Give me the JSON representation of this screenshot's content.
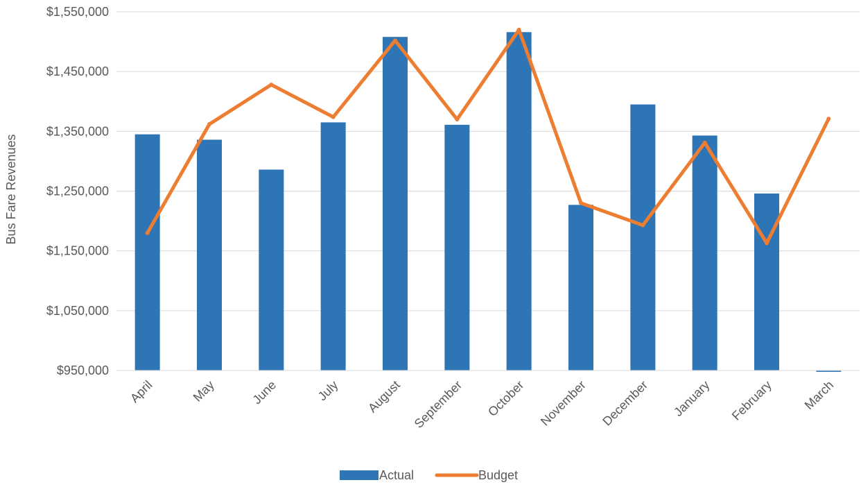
{
  "chart_data": {
    "type": "bar",
    "title": "",
    "xlabel": "",
    "ylabel": "Bus Fare Revenues",
    "ylim": [
      950000,
      1550000
    ],
    "yticks": [
      950000,
      1050000,
      1150000,
      1250000,
      1350000,
      1450000,
      1550000
    ],
    "ytick_labels": [
      "$950,000",
      "$1,050,000",
      "$1,150,000",
      "$1,250,000",
      "$1,350,000",
      "$1,450,000",
      "$1,550,000"
    ],
    "grid": true,
    "legend_position": "bottom",
    "categories": [
      "April",
      "May",
      "June",
      "July",
      "August",
      "September",
      "October",
      "November",
      "December",
      "January",
      "February",
      "March"
    ],
    "series": [
      {
        "name": "Actual",
        "type": "bar",
        "color": "#2e75b6",
        "values": [
          1345000,
          1336000,
          1286000,
          1365000,
          1508000,
          1361000,
          1516000,
          1227000,
          1395000,
          1343000,
          1246000,
          948000
        ]
      },
      {
        "name": "Budget",
        "type": "line",
        "color": "#ed7d31",
        "values": [
          1180000,
          1362000,
          1428000,
          1374000,
          1502000,
          1370000,
          1520000,
          1230000,
          1193000,
          1331000,
          1163000,
          1371000
        ]
      }
    ]
  }
}
